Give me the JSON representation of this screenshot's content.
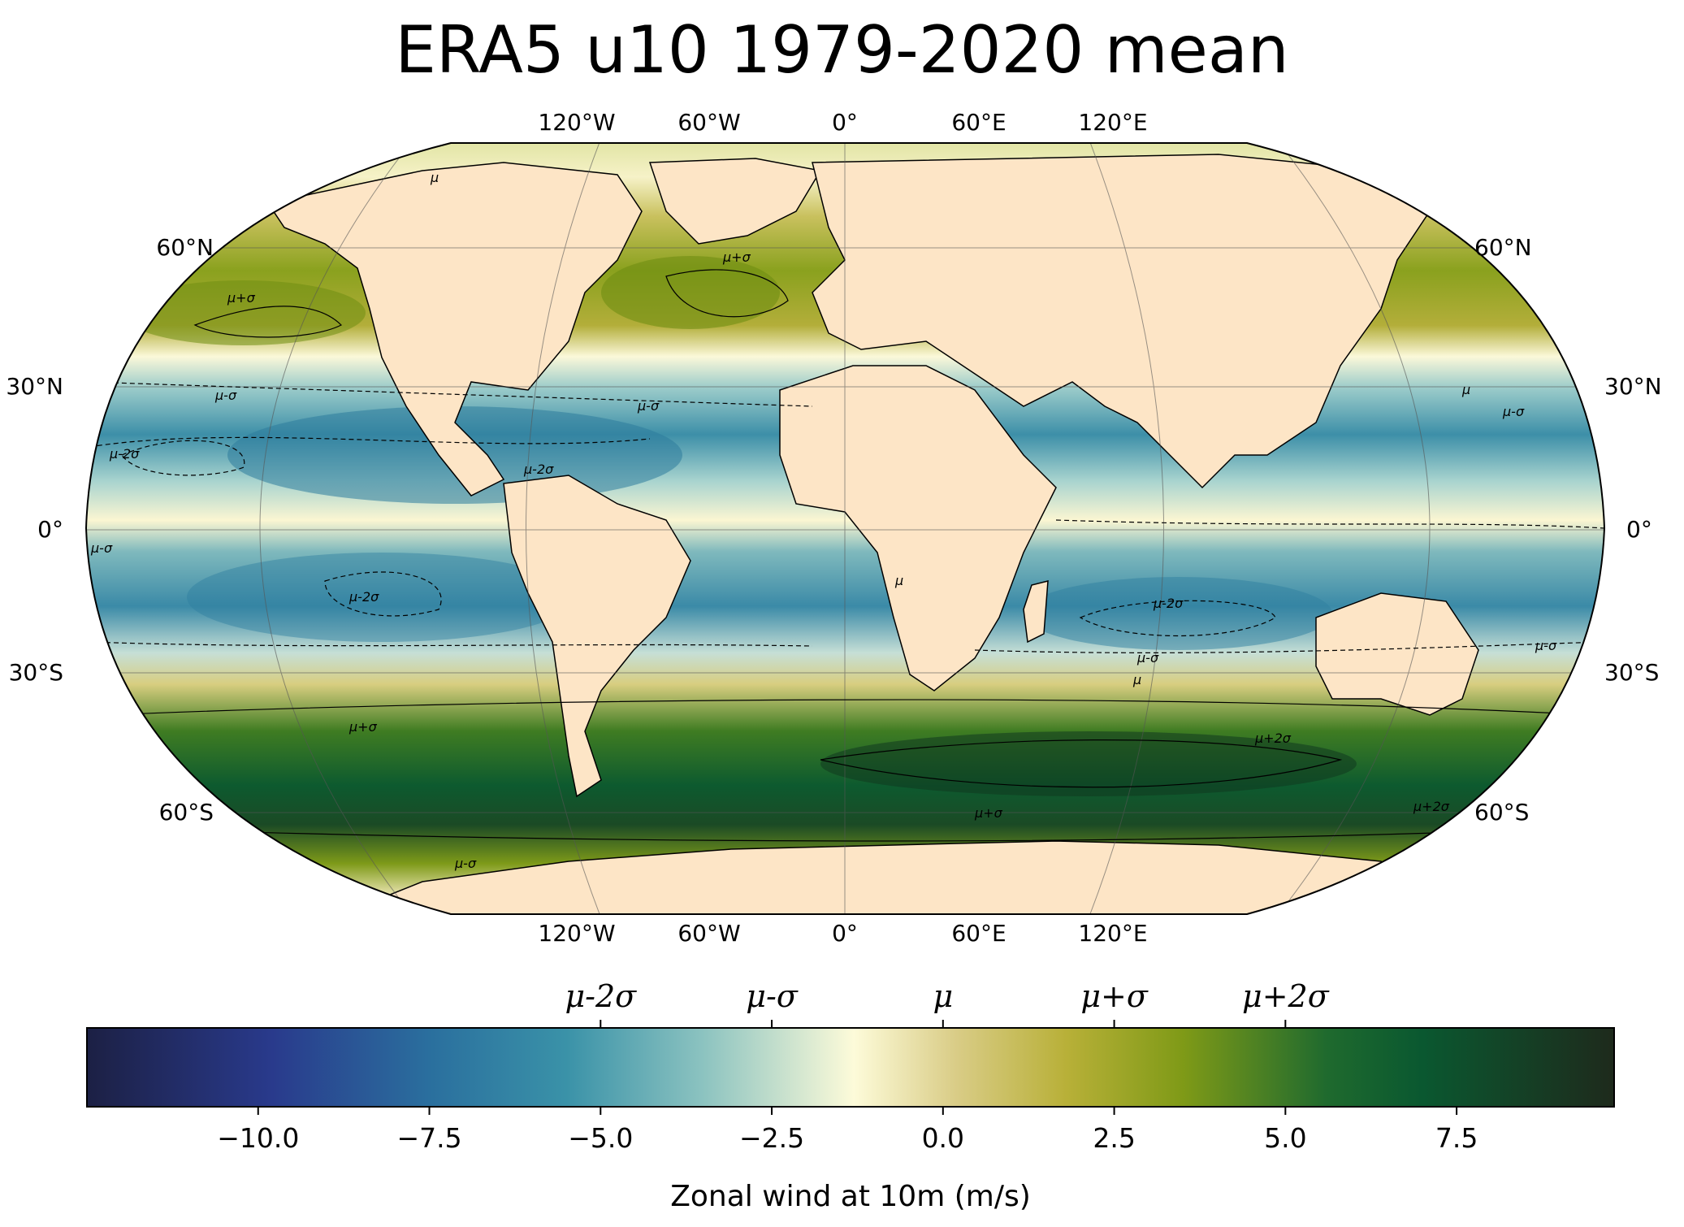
{
  "title": "ERA5 u10 1979-2020 mean",
  "map": {
    "projection": "Robinson",
    "variable": "Zonal wind at 10m",
    "units": "m/s",
    "lon_labels": [
      "120°W",
      "60°W",
      "0°",
      "60°E",
      "120°E"
    ],
    "lat_labels_left": [
      "60°N",
      "30°N",
      "0°",
      "30°S",
      "60°S"
    ],
    "lat_labels_right": [
      "60°N",
      "30°N",
      "0°",
      "30°S",
      "60°S"
    ],
    "land_color": "#fde5c6",
    "contour_labels": [
      {
        "text": "μ",
        "region": "north-pacific"
      },
      {
        "text": "μ+σ",
        "region": "north-pacific"
      },
      {
        "text": "μ+σ",
        "region": "north-atlantic"
      },
      {
        "text": "μ-σ",
        "region": "tropical-pacific-north"
      },
      {
        "text": "μ-2σ",
        "region": "tropical-pacific-north"
      },
      {
        "text": "μ-σ",
        "region": "tropical-atlantic-north"
      },
      {
        "text": "μ-2σ",
        "region": "caribbean"
      },
      {
        "text": "μ-σ",
        "region": "equatorial-pacific"
      },
      {
        "text": "μ-2σ",
        "region": "south-pacific"
      },
      {
        "text": "μ",
        "region": "west-africa-coast"
      },
      {
        "text": "μ-2σ",
        "region": "south-indian-ocean"
      },
      {
        "text": "μ-σ",
        "region": "south-indian-ocean"
      },
      {
        "text": "μ",
        "region": "south-indian-ocean"
      },
      {
        "text": "μ",
        "region": "west-pacific"
      },
      {
        "text": "μ-σ",
        "region": "west-pacific"
      },
      {
        "text": "μ-σ",
        "region": "south-west-pacific"
      },
      {
        "text": "μ+σ",
        "region": "southern-ocean-pacific"
      },
      {
        "text": "μ+2σ",
        "region": "southern-ocean-indian"
      },
      {
        "text": "μ+σ",
        "region": "southern-ocean"
      },
      {
        "text": "μ+2σ",
        "region": "southern-ocean-pacific-east"
      },
      {
        "text": "μ-σ",
        "region": "antarctic-coast"
      }
    ]
  },
  "colorbar": {
    "label": "Zonal wind at 10m (m/s)",
    "min": -12.5,
    "max": 9.8,
    "ticks": [
      -10.0,
      -7.5,
      -5.0,
      -2.5,
      0.0,
      2.5,
      5.0,
      7.5
    ],
    "tick_labels": [
      "−10.0",
      "−7.5",
      "−5.0",
      "−2.5",
      "0.0",
      "2.5",
      "5.0",
      "7.5"
    ],
    "sigma_ticks": [
      {
        "label": "μ-2σ",
        "value": -5.0
      },
      {
        "label": "μ-σ",
        "value": -2.5
      },
      {
        "label": "μ",
        "value": 0.0
      },
      {
        "label": "μ+σ",
        "value": 2.5
      },
      {
        "label": "μ+2σ",
        "value": 5.0
      }
    ],
    "colors": [
      "#1c2044",
      "#293a8c",
      "#2a6f9e",
      "#3a92a8",
      "#8cc3c0",
      "#fdfbd9",
      "#d9cc86",
      "#b8b038",
      "#7f9a17",
      "#1f6a2e",
      "#0a5830",
      "#1e2a1c"
    ],
    "color_stops": [
      -12.5,
      -9.8,
      -7.5,
      -5.5,
      -3.5,
      -1.3,
      0.2,
      1.8,
      3.5,
      5.6,
      7.0,
      9.8
    ]
  }
}
